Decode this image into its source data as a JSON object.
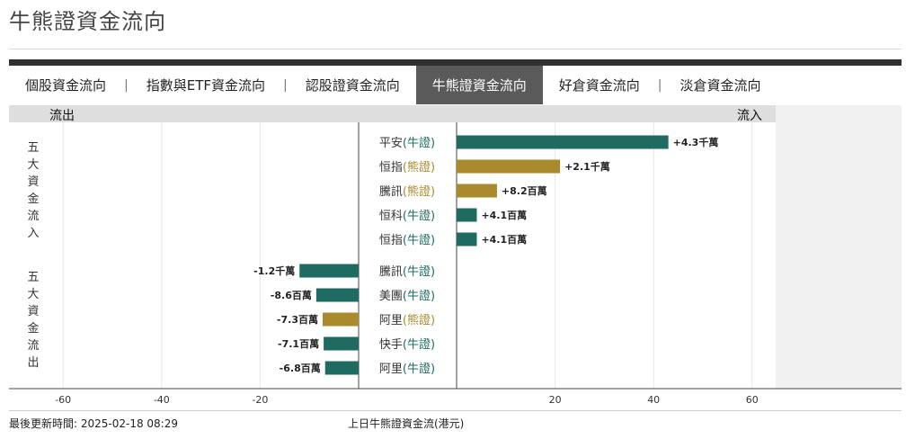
{
  "page": {
    "title": "牛熊證資金流向"
  },
  "tabs": [
    {
      "label": "個股資金流向",
      "active": false
    },
    {
      "label": "指數與ETF資金流向",
      "active": false
    },
    {
      "label": "認股證資金流向",
      "active": false
    },
    {
      "label": "牛熊證資金流向",
      "active": true
    },
    {
      "label": "好倉資金流向",
      "active": false
    },
    {
      "label": "淡倉資金流向",
      "active": false
    }
  ],
  "panel": {
    "outflow_label": "流出",
    "inflow_label": "流入",
    "top5_inflow_label": "五大資金流入",
    "top5_outflow_label": "五大資金流出"
  },
  "footer": {
    "last_updated": "最後更新時間: 2025-02-18 08:29",
    "axis_title": "上日牛熊證資金流(港元)"
  },
  "colors": {
    "bull": "#1f6b62",
    "bear": "#a98a2c",
    "tab_active_bg": "#5a5a5a"
  },
  "chart_data": {
    "type": "bar",
    "orientation": "horizontal",
    "unit": "百萬港元",
    "xlim": [
      -70,
      70
    ],
    "xticks": [
      -60,
      -40,
      -20,
      20,
      40,
      60
    ],
    "grid": true,
    "inflow": [
      {
        "name": "平安",
        "kind": "牛證",
        "value": 43,
        "label": "+4.3千萬"
      },
      {
        "name": "恒指",
        "kind": "熊證",
        "value": 21,
        "label": "+2.1千萬"
      },
      {
        "name": "騰訊",
        "kind": "熊證",
        "value": 8.2,
        "label": "+8.2百萬"
      },
      {
        "name": "恒科",
        "kind": "牛證",
        "value": 4.1,
        "label": "+4.1百萬"
      },
      {
        "name": "恒指",
        "kind": "牛證",
        "value": 4.1,
        "label": "+4.1百萬"
      }
    ],
    "outflow": [
      {
        "name": "騰訊",
        "kind": "牛證",
        "value": -12,
        "label": "-1.2千萬"
      },
      {
        "name": "美團",
        "kind": "牛證",
        "value": -8.6,
        "label": "-8.6百萬"
      },
      {
        "name": "阿里",
        "kind": "熊證",
        "value": -7.3,
        "label": "-7.3百萬"
      },
      {
        "name": "快手",
        "kind": "牛證",
        "value": -7.1,
        "label": "-7.1百萬"
      },
      {
        "name": "阿里",
        "kind": "牛證",
        "value": -6.8,
        "label": "-6.8百萬"
      }
    ]
  }
}
